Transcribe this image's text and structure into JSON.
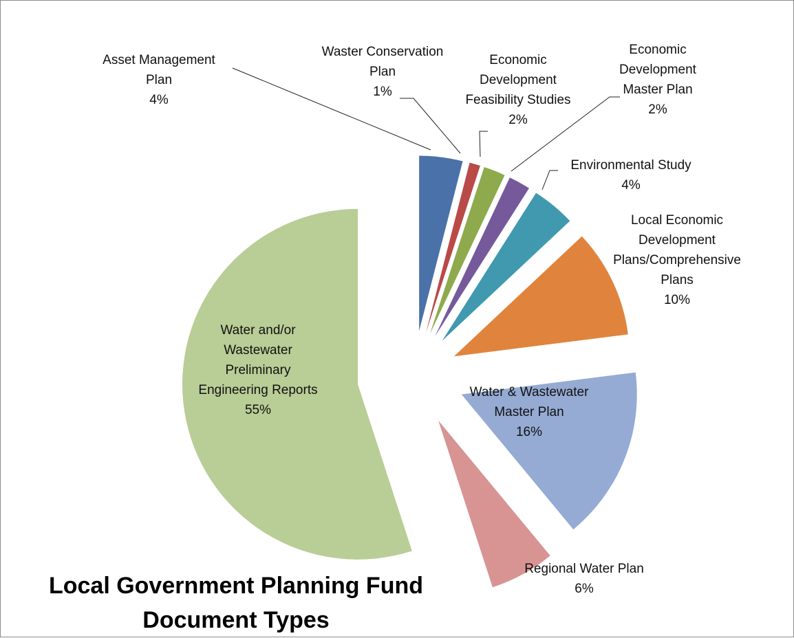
{
  "chart_data": {
    "type": "pie",
    "title": "Local Government Planning Fund Document Types",
    "exploded": true,
    "legend": "none",
    "slices": [
      {
        "label": "Asset Management Plan",
        "percent_label": "4%",
        "value": 4,
        "color": "#4a72a8"
      },
      {
        "label": "Waster Conservation Plan",
        "percent_label": "1%",
        "value": 1,
        "color": "#b94a48"
      },
      {
        "label": "Economic Development Feasibility Studies",
        "percent_label": "2%",
        "value": 2,
        "color": "#8eaa4d"
      },
      {
        "label": "Economic Development Master Plan",
        "percent_label": "2%",
        "value": 2,
        "color": "#76599b"
      },
      {
        "label": "Environmental Study",
        "percent_label": "4%",
        "value": 4,
        "color": "#4099af"
      },
      {
        "label": "Local Economic Development Plans/Comprehensive Plans",
        "percent_label": "10%",
        "value": 10,
        "color": "#e0843d"
      },
      {
        "label": "Water & Wastewater Master Plan",
        "percent_label": "16%",
        "value": 16,
        "color": "#95abd4"
      },
      {
        "label": "Regional Water Plan",
        "percent_label": "6%",
        "value": 6,
        "color": "#d79493"
      },
      {
        "label": "Water and/or Wastewater Preliminary Engineering Reports",
        "percent_label": "55%",
        "value": 55,
        "color": "#b9cd96"
      }
    ]
  }
}
